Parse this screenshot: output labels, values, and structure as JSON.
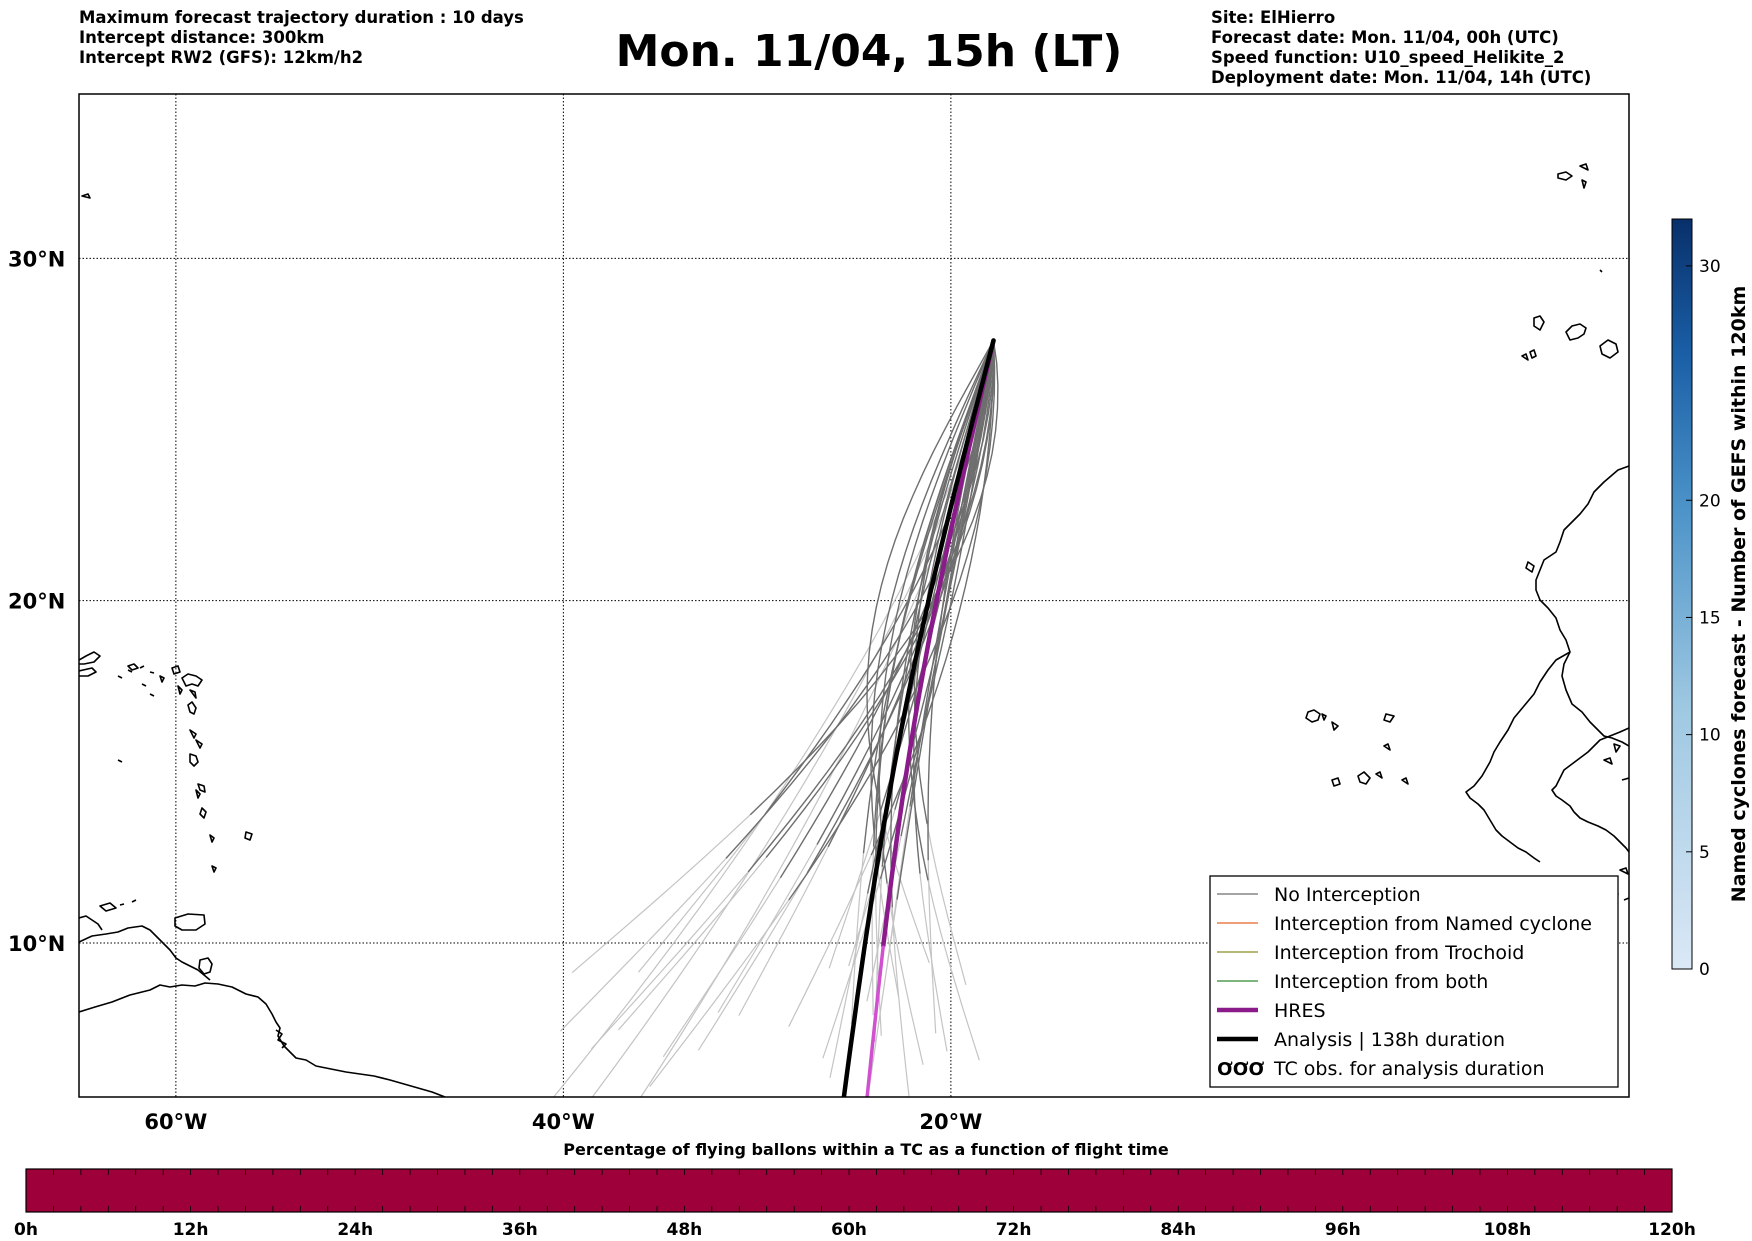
{
  "header": {
    "left": [
      "Maximum forecast trajectory duration : 10 days",
      "Intercept distance: 300km",
      "Intercept RW2 (GFS):  12km/h2"
    ],
    "title": "Mon. 11/04, 15h (LT)",
    "right": [
      "Site: ElHierro",
      "Forecast date: Mon. 11/04, 00h (UTC)",
      "Speed function: U10_speed_Helikite_2",
      "Deployment date: Mon. 11/04, 14h (UTC)"
    ]
  },
  "map": {
    "lon_range": [
      -65,
      15
    ],
    "lat_range": [
      5.5,
      34.8
    ],
    "lat_ticks": [
      {
        "value": 30,
        "label": "30°N"
      },
      {
        "value": 20,
        "label": "20°N"
      },
      {
        "value": 10,
        "label": "10°N"
      }
    ],
    "lon_ticks": [
      {
        "value": -60,
        "label": "60°W"
      },
      {
        "value": -40,
        "label": "40°W"
      },
      {
        "value": -20,
        "label": "20°W"
      }
    ],
    "gridlines": true,
    "colors": {
      "no_interception": "#6e6e6e",
      "no_interception_late": "#c4c4c4",
      "named_cyclone": "#e8642a",
      "trochoid": "#8c8c28",
      "both": "#2e8b2e",
      "hres": "#8b1a8b",
      "hres_late": "#d050d0",
      "analysis": "#000000",
      "coast": "#000000"
    },
    "trajectories": {
      "start": {
        "lat": 27.6,
        "lon": -17.8
      },
      "ensemble_members_approx": 30,
      "hres_end": {
        "lat": 5.5,
        "lon": -24.3
      },
      "analysis_end": {
        "lat": 5.5,
        "lon": -25.5
      }
    }
  },
  "legend": {
    "location": "lower-right",
    "items": [
      {
        "label": "No Interception",
        "color": "#6e6e6e",
        "style": "thin"
      },
      {
        "label": "Interception from Named cyclone",
        "color": "#e8642a",
        "style": "thin"
      },
      {
        "label": "Interception from Trochoid",
        "color": "#8c8c28",
        "style": "thin"
      },
      {
        "label": "Interception from both",
        "color": "#2e8b2e",
        "style": "thin"
      },
      {
        "label": "HRES",
        "color": "#8b1a8b",
        "style": "thick"
      },
      {
        "label": "Analysis | 138h duration",
        "color": "#000000",
        "style": "thick"
      },
      {
        "label": "TC obs. for analysis duration",
        "color": "#000000",
        "style": "symbol",
        "symbol": "ƠƠƠ"
      }
    ]
  },
  "colorbar_right": {
    "label": "Named cyclones forecast - Number of GEFS within 120km",
    "range": [
      0,
      32
    ],
    "ticks": [
      0,
      5,
      10,
      15,
      20,
      30
    ],
    "color_low": "#dbe8f6",
    "color_high": "#08306b"
  },
  "colorbar_bottom": {
    "title": "Percentage of flying ballons within a TC as a function of flight time",
    "ticks": [
      "0h",
      "12h",
      "24h",
      "36h",
      "48h",
      "60h",
      "72h",
      "84h",
      "96h",
      "108h",
      "120h"
    ],
    "fill_color": "#9e0039",
    "value_percent": 0
  }
}
